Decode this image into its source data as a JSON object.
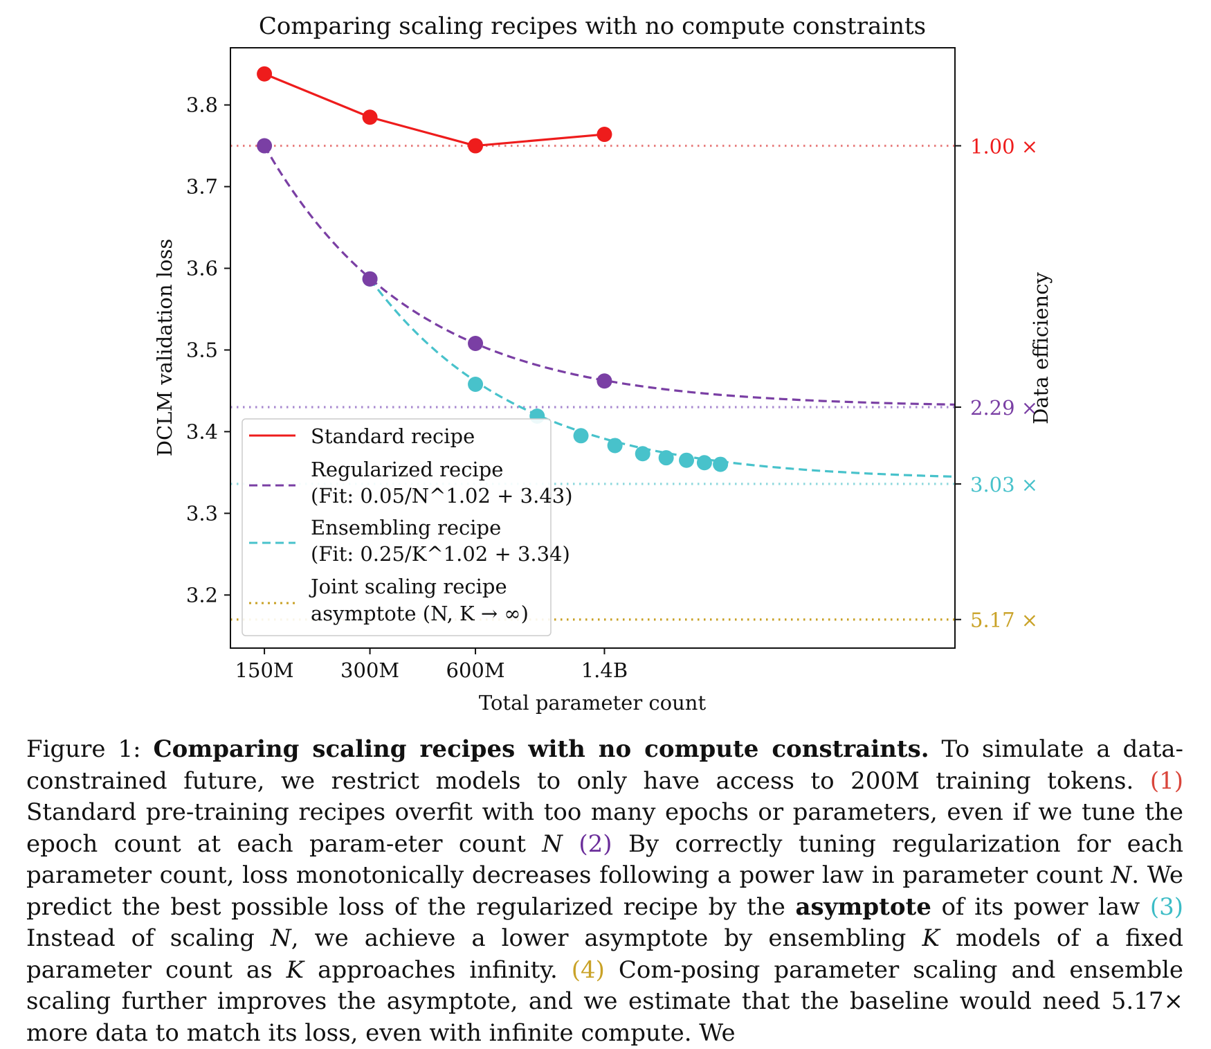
{
  "chart_data": {
    "type": "line",
    "title": "Comparing scaling recipes with no compute constraints",
    "xlabel": "Total parameter count",
    "ylabel": "DCLM validation loss",
    "ylabel_right": "Data efficiency",
    "x_scale": "log",
    "x_ticks": [
      {
        "value": 150,
        "label": "150M"
      },
      {
        "value": 300,
        "label": "300M"
      },
      {
        "value": 600,
        "label": "600M"
      },
      {
        "value": 1400,
        "label": "1.4B"
      }
    ],
    "y_ticks": [
      3.2,
      3.3,
      3.4,
      3.5,
      3.6,
      3.7,
      3.8
    ],
    "y_tick_labels": [
      "3.2",
      "3.3",
      "3.4",
      "3.5",
      "3.6",
      "3.7",
      "3.8"
    ],
    "xlim": [
      120,
      14000
    ],
    "ylim": [
      3.135,
      3.87
    ],
    "grid": false,
    "legend_position": "lower-left",
    "series": [
      {
        "key": "standard",
        "name": "Standard recipe",
        "color": "#ee1c1c",
        "style": "solid",
        "x": [
          150,
          300,
          600,
          1400
        ],
        "y": [
          3.838,
          3.785,
          3.75,
          3.764
        ]
      },
      {
        "key": "regularized",
        "name": "Regularized recipe",
        "fit_label": "(Fit: 0.05/N^1.02 + 3.43)",
        "color": "#7a3fa4",
        "style": "dashed",
        "x": [
          150,
          300,
          600,
          1400
        ],
        "y": [
          3.75,
          3.587,
          3.508,
          3.462
        ],
        "fit": {
          "a": 0.05,
          "b": 1.02,
          "c": 3.43
        }
      },
      {
        "key": "ensembling",
        "name": "Ensembling recipe",
        "fit_label": "(Fit: 0.25/K^1.02 + 3.34)",
        "color": "#48c2cb",
        "style": "dashed",
        "x": [
          300,
          600,
          900,
          1200,
          1500,
          1800,
          2100,
          2400,
          2700,
          3000
        ],
        "y": [
          3.587,
          3.458,
          3.419,
          3.395,
          3.383,
          3.373,
          3.368,
          3.365,
          3.362,
          3.36
        ],
        "fit": {
          "a": 0.25,
          "b": 1.02,
          "c": 3.34
        }
      },
      {
        "key": "joint",
        "name": "Joint scaling recipe",
        "name_line2": "asymptote (N, K → ∞)",
        "color": "#c9a227",
        "style": "dotted",
        "y_asymptote": 3.17
      }
    ],
    "reference_lines": [
      {
        "y": 3.75,
        "label": "1.00 ×",
        "color": "#e87f7f",
        "label_color": "#ee1c1c"
      },
      {
        "y": 3.43,
        "label": "2.29 ×",
        "color": "#a98ad0",
        "label_color": "#7a3fa4"
      },
      {
        "y": 3.336,
        "label": "3.03 ×",
        "color": "#8fd9de",
        "label_color": "#48c2cb"
      },
      {
        "y": 3.17,
        "label": "5.17 ×",
        "color": "#c9a227",
        "label_color": "#c9a227"
      }
    ]
  },
  "caption": {
    "figure_label": "Figure 1:",
    "bold_title": "Comparing scaling recipes with no compute constraints.",
    "t1": "To simulate a data-constrained future, we restrict models to only have access to 200M training tokens.",
    "ref1": "(1)",
    "t2": "Standard pre-training recipes overfit with too many epochs or parameters, even if we tune the epoch count at each param-eter count",
    "var_n1": "N",
    "ref2": "(2)",
    "t3": "By correctly tuning regularization for each parameter count, loss monotonically decreases following a power law in parameter count",
    "var_n2": "N",
    "t4": ". We predict the best possible loss of the regularized recipe by the",
    "bold_asymptote": "asymptote",
    "t5": "of its power law",
    "ref3": "(3)",
    "t6": "Instead of scaling",
    "var_n3": "N",
    "t7": ", we achieve a lower asymptote by ensembling",
    "var_k1": "K",
    "t8": "models of a fixed parameter count as",
    "var_k2": "K",
    "t9": "approaches infinity.",
    "ref4": "(4)",
    "t10": "Com-posing parameter scaling and ensemble scaling further improves the asymptote, and we estimate that the baseline would need 5.17× more data to match its loss, even with infinite compute. We"
  }
}
